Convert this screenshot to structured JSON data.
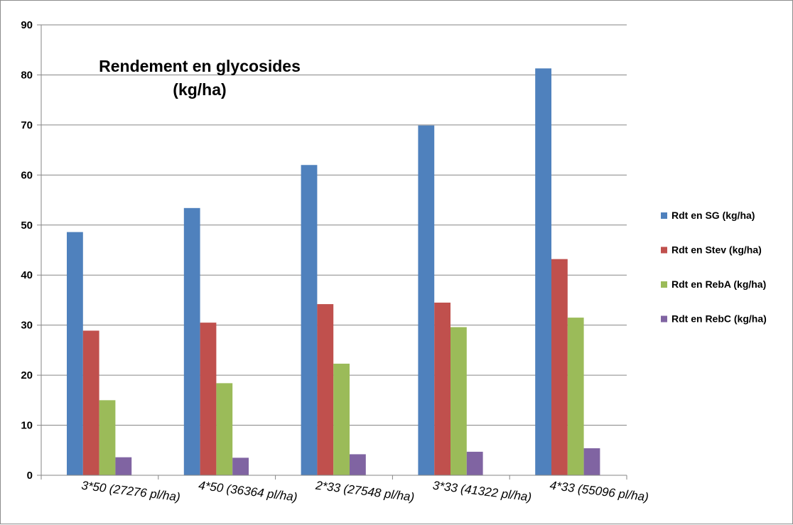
{
  "chart_data": {
    "type": "bar",
    "title_line1": "Rendement en glycosides",
    "title_line2": "(kg/ha)",
    "xlabel": "",
    "ylabel": "",
    "ylim": [
      0,
      90
    ],
    "yticks": [
      "0",
      "10",
      "20",
      "30",
      "40",
      "50",
      "60",
      "70",
      "80",
      "90"
    ],
    "grid": true,
    "legend_position": "right",
    "categories": [
      "3*50 (27276 pl/ha)",
      "4*50 (36364 pl/ha)",
      "2*33 (27548 pl/ha)",
      "3*33 (41322 pl/ha)",
      "4*33 (55096 pl/ha)"
    ],
    "series": [
      {
        "name": "Rdt en SG (kg/ha)",
        "color": "#4f81bd",
        "values": [
          48.6,
          53.4,
          62.0,
          69.9,
          81.3
        ]
      },
      {
        "name": "Rdt en Stev  (kg/ha)",
        "color": "#c0504d",
        "values": [
          28.9,
          30.5,
          34.2,
          34.5,
          43.2
        ]
      },
      {
        "name": "Rdt en RebA (kg/ha)",
        "color": "#9bbb59",
        "values": [
          15.0,
          18.4,
          22.3,
          29.6,
          31.5
        ]
      },
      {
        "name": "Rdt en RebC  (kg/ha)",
        "color": "#8064a2",
        "values": [
          3.6,
          3.5,
          4.2,
          4.7,
          5.4
        ]
      }
    ]
  }
}
